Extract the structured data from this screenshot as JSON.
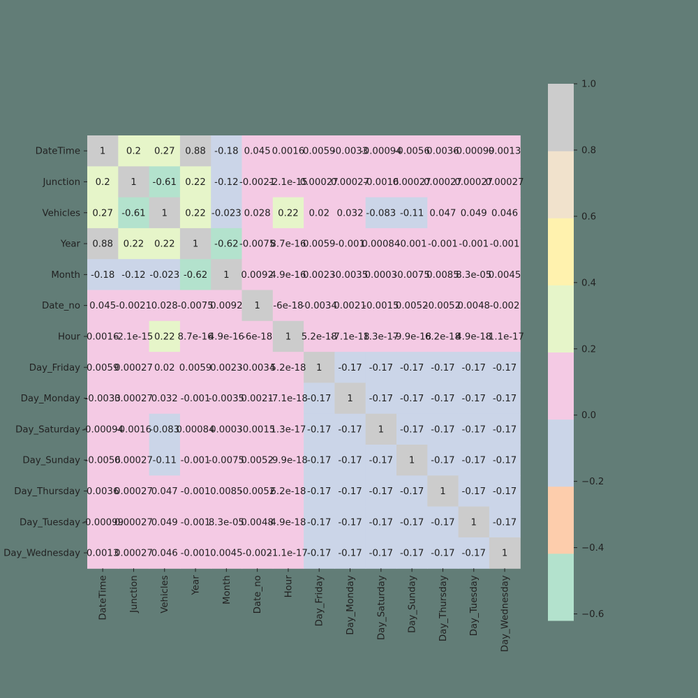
{
  "chart_data": {
    "type": "heatmap",
    "title": "",
    "xlabel": "",
    "ylabel": "",
    "labels": [
      "DateTime",
      "Junction",
      "Vehicles",
      "Year",
      "Month",
      "Date_no",
      "Hour",
      "Day_Friday",
      "Day_Monday",
      "Day_Saturday",
      "Day_Sunday",
      "Day_Thursday",
      "Day_Tuesday",
      "Day_Wednesday"
    ],
    "values": [
      [
        1,
        0.2,
        0.27,
        0.88,
        -0.18,
        0.045,
        0.0016,
        0.0059,
        -0.0033,
        -0.00094,
        -0.0056,
        0.0036,
        -0.00099,
        0.0013
      ],
      [
        0.2,
        1,
        -0.61,
        0.22,
        -0.12,
        -0.0021,
        -2.1e-15,
        0.00027,
        0.00027,
        -0.0016,
        0.00027,
        0.00027,
        0.00027,
        0.00027
      ],
      [
        0.27,
        -0.61,
        1,
        0.22,
        -0.023,
        0.028,
        0.22,
        0.02,
        0.032,
        -0.083,
        -0.11,
        0.047,
        0.049,
        0.046
      ],
      [
        0.88,
        0.22,
        0.22,
        1,
        -0.62,
        -0.0075,
        8.7e-16,
        0.0059,
        -0.001,
        0.00084,
        -0.001,
        -0.001,
        -0.001,
        -0.001
      ],
      [
        -0.18,
        -0.12,
        -0.023,
        -0.62,
        1,
        0.0092,
        4.9e-16,
        0.0023,
        -0.0035,
        0.0003,
        -0.0075,
        0.0085,
        8.3e-05,
        0.0045
      ],
      [
        0.045,
        -0.0021,
        0.028,
        -0.0075,
        0.0092,
        1,
        -6e-18,
        -0.0034,
        0.0021,
        -0.0015,
        0.0052,
        -0.0052,
        0.0048,
        -0.002
      ],
      [
        0.0016,
        -2.1e-15,
        0.22,
        8.7e-16,
        4.9e-16,
        -6e-18,
        1,
        5.2e-18,
        -7.1e-18,
        1.3e-17,
        -9.9e-18,
        6.2e-18,
        4.9e-18,
        -1.1e-17
      ],
      [
        0.0059,
        0.00027,
        0.02,
        0.0059,
        0.0023,
        -0.0034,
        5.2e-18,
        1,
        -0.17,
        -0.17,
        -0.17,
        -0.17,
        -0.17,
        -0.17
      ],
      [
        -0.0033,
        0.00027,
        0.032,
        -0.001,
        -0.0035,
        0.0021,
        -7.1e-18,
        -0.17,
        1,
        -0.17,
        -0.17,
        -0.17,
        -0.17,
        -0.17
      ],
      [
        -0.00094,
        -0.0016,
        -0.083,
        0.00084,
        0.0003,
        -0.0015,
        1.3e-17,
        -0.17,
        -0.17,
        1,
        -0.17,
        -0.17,
        -0.17,
        -0.17
      ],
      [
        -0.0056,
        0.00027,
        -0.11,
        -0.001,
        -0.0075,
        0.0052,
        -9.9e-18,
        -0.17,
        -0.17,
        -0.17,
        1,
        -0.17,
        -0.17,
        -0.17
      ],
      [
        0.0036,
        0.00027,
        0.047,
        -0.001,
        0.0085,
        -0.0052,
        6.2e-18,
        -0.17,
        -0.17,
        -0.17,
        -0.17,
        1,
        -0.17,
        -0.17
      ],
      [
        -0.00099,
        0.00027,
        0.049,
        -0.001,
        8.3e-05,
        0.0048,
        4.9e-18,
        -0.17,
        -0.17,
        -0.17,
        -0.17,
        -0.17,
        1,
        -0.17
      ],
      [
        0.0013,
        0.00027,
        0.046,
        -0.001,
        0.0045,
        -0.002,
        -1.1e-17,
        -0.17,
        -0.17,
        -0.17,
        -0.17,
        -0.17,
        -0.17,
        1
      ]
    ],
    "annotations": [
      [
        "1",
        "0.2",
        "0.27",
        "0.88",
        "-0.18",
        "0.045",
        "0.0016",
        "0.0059",
        "-0.0033",
        "-0.00094",
        "-0.0056",
        "0.0036",
        "-0.00099",
        "0.0013"
      ],
      [
        "0.2",
        "1",
        "-0.61",
        "0.22",
        "-0.12",
        "-0.0021",
        "-2.1e-15",
        "0.00027",
        "0.00027",
        "-0.0016",
        "0.00027",
        "0.00027",
        "0.00027",
        "0.00027"
      ],
      [
        "0.27",
        "-0.61",
        "1",
        "0.22",
        "-0.023",
        "0.028",
        "0.22",
        "0.02",
        "0.032",
        "-0.083",
        "-0.11",
        "0.047",
        "0.049",
        "0.046"
      ],
      [
        "0.88",
        "0.22",
        "0.22",
        "1",
        "-0.62",
        "-0.0075",
        "8.7e-16",
        "0.0059",
        "-0.001",
        "0.00084",
        "-0.001",
        "-0.001",
        "-0.001",
        "-0.001"
      ],
      [
        "-0.18",
        "-0.12",
        "-0.023",
        "-0.62",
        "1",
        "0.0092",
        "4.9e-16",
        "0.0023",
        "-0.0035",
        "0.0003",
        "-0.0075",
        "0.0085",
        "8.3e-05",
        "0.0045"
      ],
      [
        "0.045",
        "-0.0021",
        "0.028",
        "-0.0075",
        "0.0092",
        "1",
        "-6e-18",
        "-0.0034",
        "0.0021",
        "-0.0015",
        "0.0052",
        "-0.0052",
        "0.0048",
        "-0.002"
      ],
      [
        "0.0016",
        "-2.1e-15",
        "0.22",
        "8.7e-16",
        "4.9e-16",
        "-6e-18",
        "1",
        "5.2e-18",
        "-7.1e-18",
        "1.3e-17",
        "-9.9e-18",
        "6.2e-18",
        "4.9e-18",
        "-1.1e-17"
      ],
      [
        "0.0059",
        "0.00027",
        "0.02",
        "0.0059",
        "0.0023",
        "-0.0034",
        "5.2e-18",
        "1",
        "-0.17",
        "-0.17",
        "-0.17",
        "-0.17",
        "-0.17",
        "-0.17"
      ],
      [
        "-0.0033",
        "0.00027",
        "0.032",
        "-0.001",
        "-0.0035",
        "0.0021",
        "-7.1e-18",
        "-0.17",
        "1",
        "-0.17",
        "-0.17",
        "-0.17",
        "-0.17",
        "-0.17"
      ],
      [
        "-0.00094",
        "-0.0016",
        "-0.083",
        "0.00084",
        "0.0003",
        "-0.0015",
        "1.3e-17",
        "-0.17",
        "-0.17",
        "1",
        "-0.17",
        "-0.17",
        "-0.17",
        "-0.17"
      ],
      [
        "-0.0056",
        "0.00027",
        "-0.11",
        "-0.001",
        "-0.0075",
        "0.0052",
        "-9.9e-18",
        "-0.17",
        "-0.17",
        "-0.17",
        "1",
        "-0.17",
        "-0.17",
        "-0.17"
      ],
      [
        "0.0036",
        "0.00027",
        "0.047",
        "-0.001",
        "0.0085",
        "-0.0052",
        "6.2e-18",
        "-0.17",
        "-0.17",
        "-0.17",
        "-0.17",
        "1",
        "-0.17",
        "-0.17"
      ],
      [
        "-0.00099",
        "0.00027",
        "0.049",
        "-0.001",
        "8.3e-05",
        "0.0048",
        "4.9e-18",
        "-0.17",
        "-0.17",
        "-0.17",
        "-0.17",
        "-0.17",
        "1",
        "-0.17"
      ],
      [
        "0.0013",
        "0.00027",
        "0.046",
        "-0.001",
        "0.0045",
        "-0.002",
        "-1.1e-17",
        "-0.17",
        "-0.17",
        "-0.17",
        "-0.17",
        "-0.17",
        "-0.17",
        "1"
      ]
    ],
    "colorbar": {
      "vmin": -0.62,
      "vmax": 1.0,
      "ticks": [
        -0.6,
        -0.4,
        -0.2,
        0.0,
        0.2,
        0.4,
        0.6,
        0.8,
        1.0
      ],
      "tick_labels": [
        "−0.6",
        "−0.4",
        "−0.2",
        "0.0",
        "0.2",
        "0.4",
        "0.6",
        "0.8",
        "1.0"
      ],
      "colormap": "Pastel2",
      "colors": [
        "#b3e2cd",
        "#fdcdac",
        "#cbd5e8",
        "#f4cae4",
        "#e6f5c9",
        "#fff2ae",
        "#f1e2cc",
        "#cccccc"
      ]
    },
    "background_color": "#627d77",
    "text_color": "#222222"
  }
}
